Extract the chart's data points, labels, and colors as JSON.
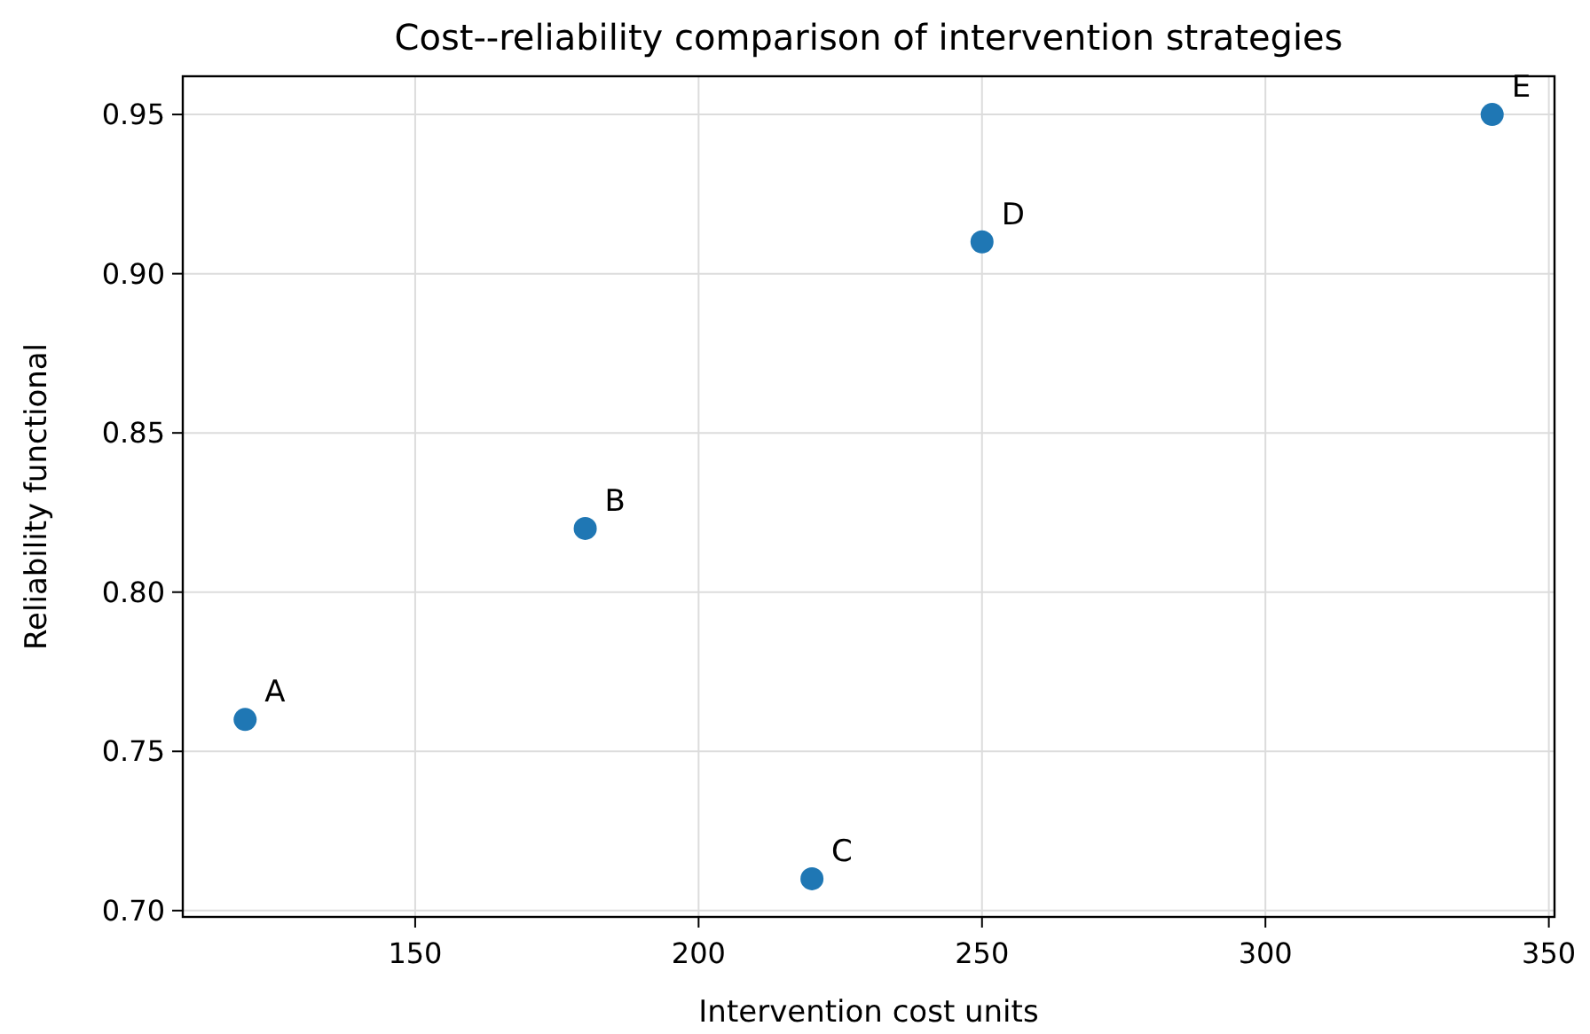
{
  "chart_data": {
    "type": "scatter",
    "title": "Cost--reliability comparison of intervention strategies",
    "xlabel": "Intervention cost units",
    "ylabel": "Reliability functional",
    "x": [
      120,
      180,
      220,
      250,
      340
    ],
    "values": [
      0.76,
      0.82,
      0.71,
      0.91,
      0.95
    ],
    "color": "#1f77b4",
    "marker": "circle",
    "xlim": [
      109,
      351
    ],
    "xticks": [
      150,
      200,
      250,
      300,
      350
    ],
    "ylim": [
      0.698,
      0.962
    ],
    "yticks": [
      {
        "value": 0.7,
        "label": "0.70"
      },
      {
        "value": 0.75,
        "label": "0.75"
      },
      {
        "value": 0.8,
        "label": "0.80"
      },
      {
        "value": 0.85,
        "label": "0.85"
      },
      {
        "value": 0.9,
        "label": "0.90"
      },
      {
        "value": 0.95,
        "label": "0.95"
      }
    ],
    "grid": true,
    "annotations": [
      {
        "text": "A",
        "x": 120,
        "y": 0.76
      },
      {
        "text": "B",
        "x": 180,
        "y": 0.82
      },
      {
        "text": "C",
        "x": 220,
        "y": 0.71
      },
      {
        "text": "D",
        "x": 250,
        "y": 0.91
      },
      {
        "text": "E",
        "x": 340,
        "y": 0.95
      }
    ]
  }
}
